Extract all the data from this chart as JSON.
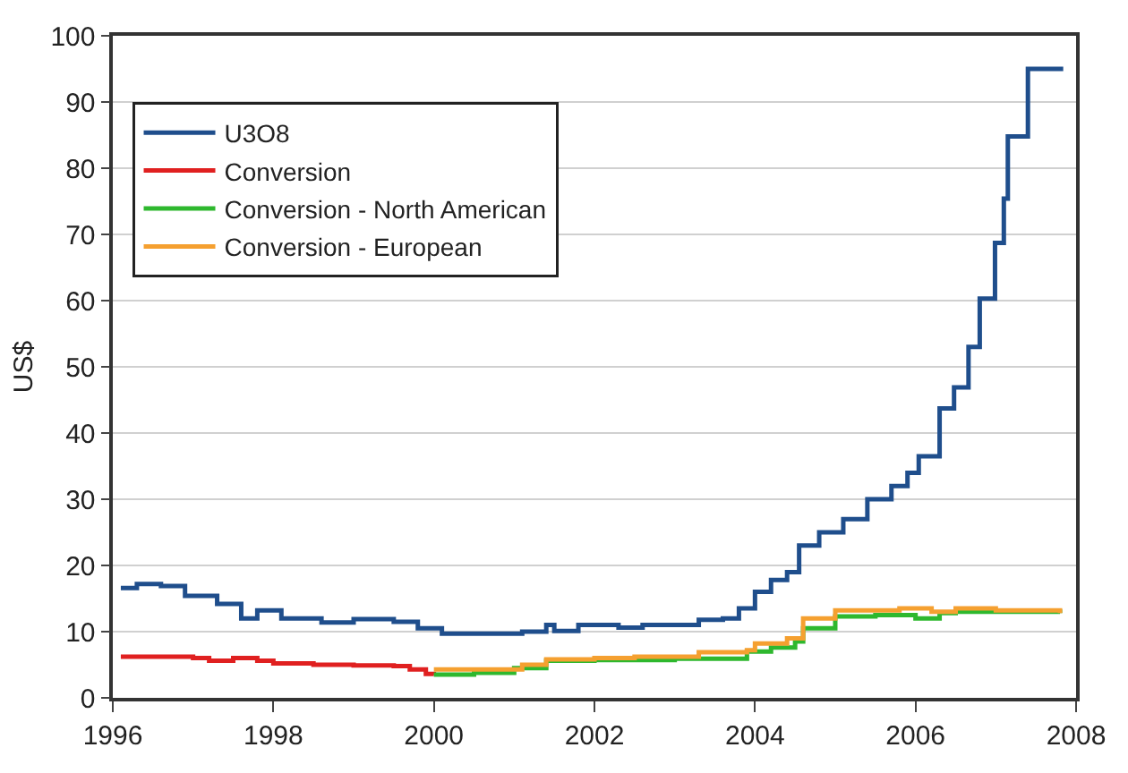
{
  "chart_data": {
    "type": "step",
    "ylabel": "US$",
    "xlim": [
      1996,
      2008
    ],
    "xticks": [
      1996,
      1998,
      2000,
      2002,
      2004,
      2006,
      2008
    ],
    "ylim": [
      0,
      100
    ],
    "yticks": [
      0,
      10,
      20,
      30,
      40,
      50,
      60,
      70,
      80,
      90,
      100
    ],
    "grid": "y",
    "legend": "top left",
    "marker": "none",
    "line_style": "solid",
    "series": [
      {
        "name": "U3O8",
        "color": "#1f4e8c",
        "x": [
          1996.1,
          1996.3,
          1996.6,
          1996.9,
          1997.3,
          1997.6,
          1997.8,
          1998.1,
          1998.6,
          1999.0,
          1999.5,
          1999.8,
          2000.1,
          2000.6,
          2001.1,
          2001.4,
          2001.5,
          2001.8,
          2002.3,
          2002.6,
          2003.0,
          2003.3,
          2003.6,
          2003.8,
          2004.0,
          2004.2,
          2004.4,
          2004.55,
          2004.8,
          2005.1,
          2005.4,
          2005.7,
          2005.9,
          2006.04,
          2006.3,
          2006.48,
          2006.66,
          2006.8,
          2006.99,
          2007.1,
          2007.15,
          2007.4,
          2007.84
        ],
        "values": [
          16.6,
          17.2,
          16.9,
          15.4,
          14.2,
          12,
          13.2,
          12,
          11.4,
          11.9,
          11.5,
          10.5,
          9.7,
          9.7,
          10,
          11,
          10.1,
          11,
          10.6,
          11,
          11,
          11.8,
          12,
          13.5,
          16,
          17.8,
          19,
          23,
          25,
          27,
          30,
          32,
          34,
          36.5,
          43.7,
          46.9,
          53,
          60.3,
          68.7,
          75.4,
          84.8,
          95,
          95
        ]
      },
      {
        "name": "Conversion",
        "color": "#e02020",
        "x": [
          1996.1,
          1997.0,
          1997.2,
          1997.5,
          1997.8,
          1998.0,
          1998.5,
          1999.0,
          1999.5,
          1999.7,
          1999.9,
          2000.0
        ],
        "values": [
          6.2,
          6.0,
          5.6,
          6.0,
          5.6,
          5.2,
          5.0,
          4.9,
          4.8,
          4.3,
          3.6,
          3.5
        ]
      },
      {
        "name": "Conversion - North American",
        "color": "#2eb82e",
        "x": [
          2000.0,
          2000.5,
          2001.0,
          2001.4,
          2002.0,
          2003.0,
          2003.9,
          2004.2,
          2004.5,
          2004.6,
          2005.0,
          2005.5,
          2006.0,
          2006.3,
          2006.5,
          2007.0,
          2007.8
        ],
        "values": [
          3.5,
          3.8,
          4.5,
          5.6,
          5.7,
          5.9,
          7.0,
          7.6,
          8.5,
          10.5,
          12.3,
          12.5,
          12.0,
          12.8,
          13.0,
          13.0,
          12.8
        ]
      },
      {
        "name": "Conversion - European",
        "color": "#f5a030",
        "x": [
          2000.0,
          2000.8,
          2001.1,
          2001.4,
          2002.0,
          2002.5,
          2003.3,
          2003.9,
          2004.0,
          2004.4,
          2004.6,
          2005.0,
          2005.8,
          2006.2,
          2006.5,
          2007.0,
          2007.8
        ],
        "values": [
          4.3,
          4.3,
          5.0,
          5.8,
          6.0,
          6.2,
          6.9,
          7.2,
          8.2,
          9.0,
          12.0,
          13.2,
          13.5,
          13.0,
          13.5,
          13.2,
          12.8
        ]
      }
    ]
  }
}
